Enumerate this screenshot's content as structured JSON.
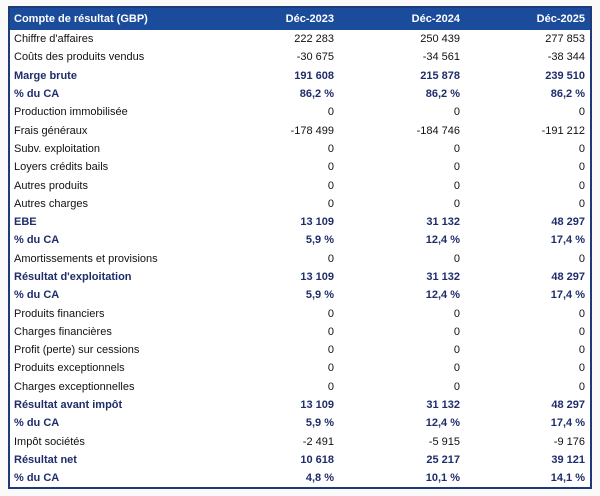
{
  "table": {
    "title": "Compte de résultat (GBP)",
    "columns": [
      "Déc-2023",
      "Déc-2024",
      "Déc-2025"
    ],
    "rows": [
      {
        "label": "Chiffre d'affaires",
        "values": [
          "222 283",
          "250 439",
          "277 853"
        ],
        "bold": false
      },
      {
        "label": "Coûts des produits vendus",
        "values": [
          "-30 675",
          "-34 561",
          "-38 344"
        ],
        "bold": false
      },
      {
        "label": "Marge brute",
        "values": [
          "191 608",
          "215 878",
          "239 510"
        ],
        "bold": true
      },
      {
        "label": "% du CA",
        "values": [
          "86,2 %",
          "86,2 %",
          "86,2 %"
        ],
        "bold": true
      },
      {
        "label": "Production immobilisée",
        "values": [
          "0",
          "0",
          "0"
        ],
        "bold": false
      },
      {
        "label": "Frais généraux",
        "values": [
          "-178 499",
          "-184 746",
          "-191 212"
        ],
        "bold": false
      },
      {
        "label": "Subv. exploitation",
        "values": [
          "0",
          "0",
          "0"
        ],
        "bold": false
      },
      {
        "label": "Loyers crédits bails",
        "values": [
          "0",
          "0",
          "0"
        ],
        "bold": false
      },
      {
        "label": "Autres produits",
        "values": [
          "0",
          "0",
          "0"
        ],
        "bold": false
      },
      {
        "label": "Autres charges",
        "values": [
          "0",
          "0",
          "0"
        ],
        "bold": false
      },
      {
        "label": "EBE",
        "values": [
          "13 109",
          "31 132",
          "48 297"
        ],
        "bold": true
      },
      {
        "label": "% du CA",
        "values": [
          "5,9 %",
          "12,4 %",
          "17,4 %"
        ],
        "bold": true
      },
      {
        "label": "Amortissements et provisions",
        "values": [
          "0",
          "0",
          "0"
        ],
        "bold": false
      },
      {
        "label": "Résultat d'exploitation",
        "values": [
          "13 109",
          "31 132",
          "48 297"
        ],
        "bold": true
      },
      {
        "label": "% du CA",
        "values": [
          "5,9 %",
          "12,4 %",
          "17,4 %"
        ],
        "bold": true
      },
      {
        "label": "Produits financiers",
        "values": [
          "0",
          "0",
          "0"
        ],
        "bold": false
      },
      {
        "label": "Charges financières",
        "values": [
          "0",
          "0",
          "0"
        ],
        "bold": false
      },
      {
        "label": "Profit (perte) sur cessions",
        "values": [
          "0",
          "0",
          "0"
        ],
        "bold": false
      },
      {
        "label": "Produits exceptionnels",
        "values": [
          "0",
          "0",
          "0"
        ],
        "bold": false
      },
      {
        "label": "Charges exceptionnelles",
        "values": [
          "0",
          "0",
          "0"
        ],
        "bold": false
      },
      {
        "label": "Résultat avant impôt",
        "values": [
          "13 109",
          "31 132",
          "48 297"
        ],
        "bold": true
      },
      {
        "label": "% du CA",
        "values": [
          "5,9 %",
          "12,4 %",
          "17,4 %"
        ],
        "bold": true
      },
      {
        "label": "Impôt sociétés",
        "values": [
          "-2 491",
          "-5 915",
          "-9 176"
        ],
        "bold": false
      },
      {
        "label": "Résultat net",
        "values": [
          "10 618",
          "25 217",
          "39 121"
        ],
        "bold": true
      },
      {
        "label": "% du CA",
        "values": [
          "4,8 %",
          "10,1 %",
          "14,1 %"
        ],
        "bold": true
      }
    ]
  },
  "colors": {
    "header_bg": "#1b4c9c",
    "header_text": "#ffffff",
    "bold_text": "#1f2d6b",
    "body_text": "#111111",
    "border": "#1e3a78",
    "row_bg": "#ffffff"
  }
}
